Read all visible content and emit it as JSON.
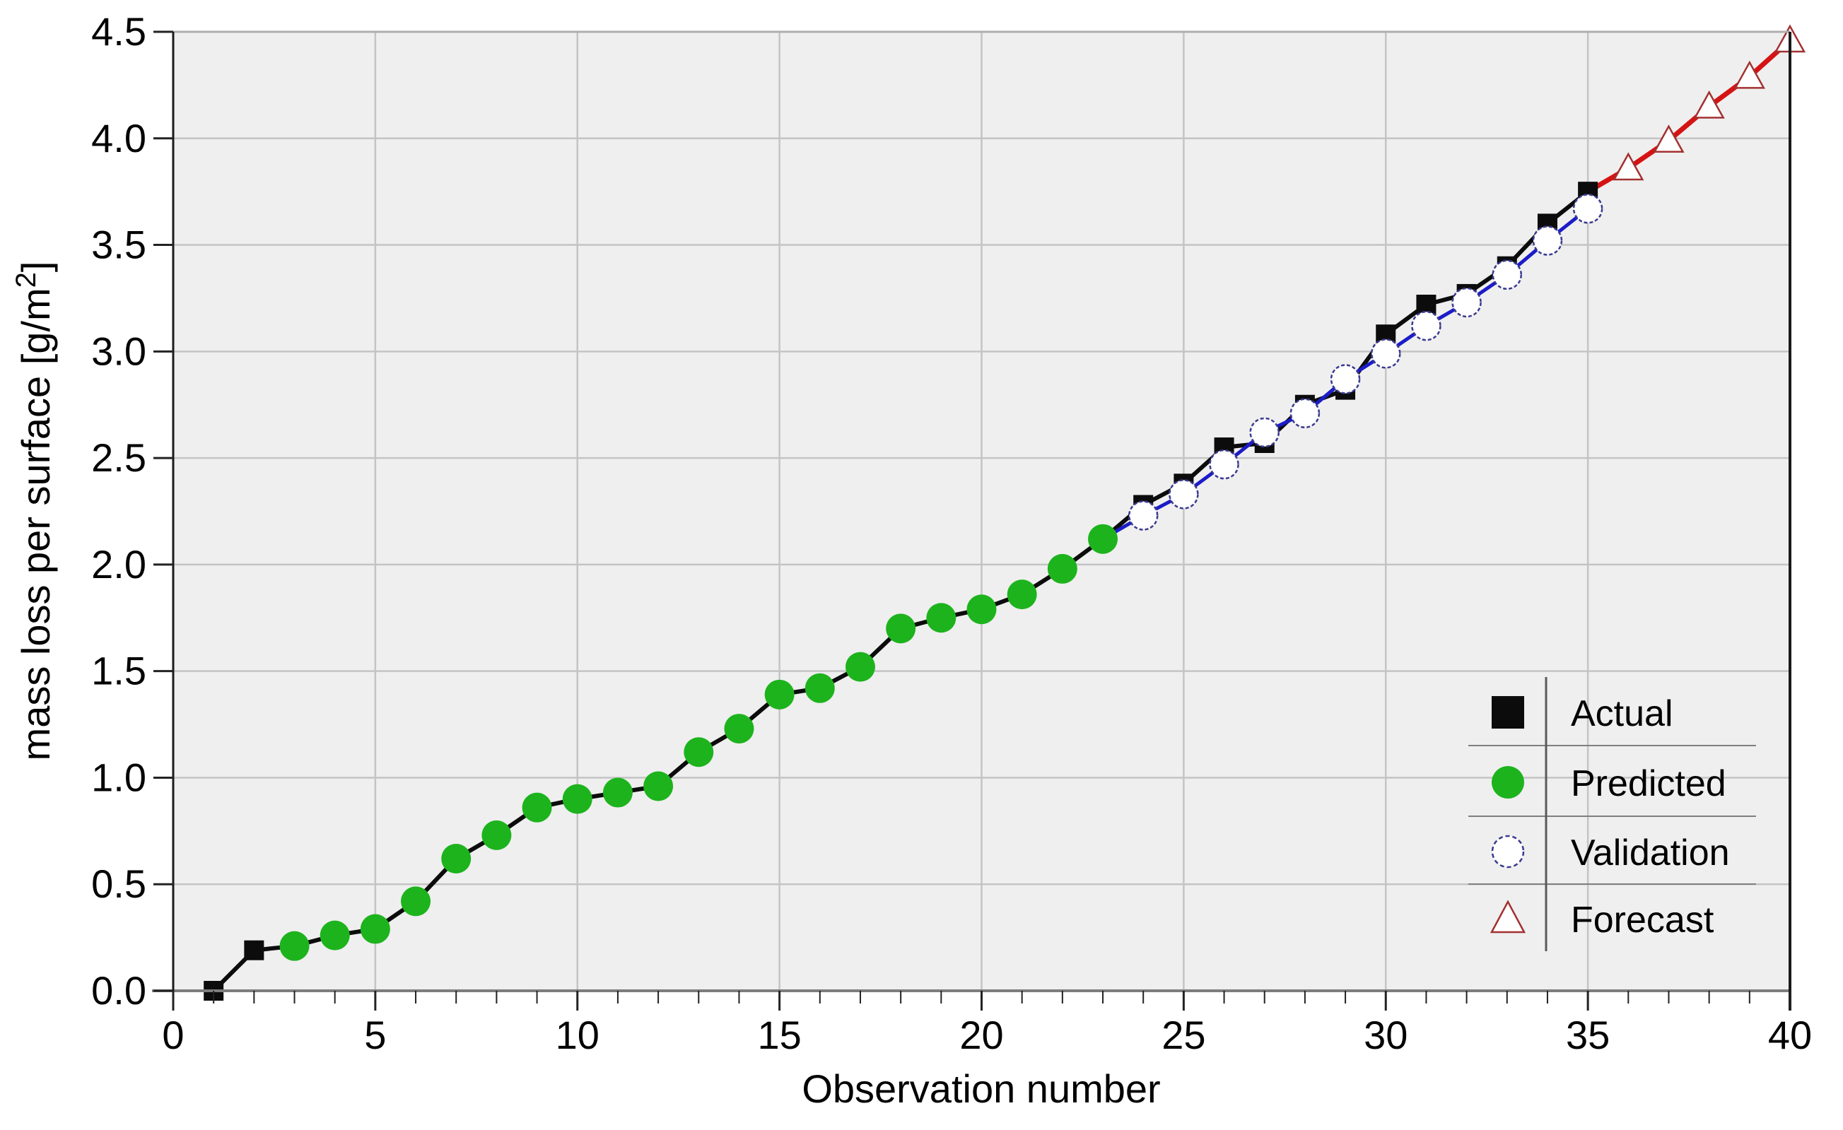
{
  "chart_data": {
    "type": "line",
    "title": "",
    "xlabel": "Observation number",
    "ylabel": "mass loss per surface [g/m²]",
    "ylabel_parts": {
      "prefix": "mass loss per surface [g/m",
      "sup": "2",
      "suffix": "]"
    },
    "xlim": [
      0,
      40
    ],
    "ylim": [
      0,
      4.5
    ],
    "x_ticks": [
      "0",
      "5",
      "10",
      "15",
      "20",
      "25",
      "30",
      "35",
      "40"
    ],
    "y_ticks": [
      "0.0",
      "0.5",
      "1.0",
      "1.5",
      "2.0",
      "2.5",
      "3.0",
      "3.5",
      "4.0",
      "4.5"
    ],
    "grid": true,
    "legend": {
      "position": "lower right",
      "entries": [
        "Actual",
        "Predicted",
        "Validation",
        "Forecast"
      ]
    },
    "series": [
      {
        "name": "Actual",
        "marker": "filled-square",
        "marker_color": "#0c0c0c",
        "line_color": "#0c0c0c",
        "x": [
          1,
          2,
          3,
          4,
          5,
          6,
          7,
          8,
          9,
          10,
          11,
          12,
          13,
          14,
          15,
          16,
          17,
          18,
          19,
          20,
          21,
          22,
          23,
          24,
          25,
          26,
          27,
          28,
          29,
          30,
          31,
          32,
          33,
          34,
          35
        ],
        "y": [
          0.0,
          0.19,
          0.21,
          0.26,
          0.29,
          0.42,
          0.62,
          0.73,
          0.86,
          0.9,
          0.93,
          0.96,
          1.12,
          1.23,
          1.39,
          1.42,
          1.52,
          1.7,
          1.75,
          1.79,
          1.86,
          1.98,
          2.12,
          2.28,
          2.38,
          2.55,
          2.57,
          2.75,
          2.82,
          3.08,
          3.22,
          3.27,
          3.4,
          3.6,
          3.75
        ]
      },
      {
        "name": "Predicted",
        "marker": "filled-circle",
        "marker_color": "#1db31d",
        "line_color": null,
        "x": [
          3,
          4,
          5,
          6,
          7,
          8,
          9,
          10,
          11,
          12,
          13,
          14,
          15,
          16,
          17,
          18,
          19,
          20,
          21,
          22,
          23
        ],
        "y": [
          0.21,
          0.26,
          0.29,
          0.42,
          0.62,
          0.73,
          0.86,
          0.9,
          0.93,
          0.96,
          1.12,
          1.23,
          1.39,
          1.42,
          1.52,
          1.7,
          1.75,
          1.79,
          1.86,
          1.98,
          2.12
        ]
      },
      {
        "name": "Validation",
        "marker": "open-circle",
        "marker_color": "#ffffff",
        "marker_edge": "#3a3a90",
        "line_color": "#1c1cc8",
        "line_start": {
          "x": 23,
          "y": 2.12
        },
        "x": [
          24,
          25,
          26,
          27,
          28,
          29,
          30,
          31,
          32,
          33,
          34,
          35
        ],
        "y": [
          2.23,
          2.33,
          2.47,
          2.62,
          2.71,
          2.87,
          2.99,
          3.12,
          3.23,
          3.36,
          3.52,
          3.67
        ]
      },
      {
        "name": "Forecast",
        "marker": "open-triangle",
        "marker_color": "#ffffff",
        "marker_edge": "#a33030",
        "line_color": "#d41414",
        "line_start": {
          "x": 35,
          "y": 3.75
        },
        "x": [
          36,
          37,
          38,
          39,
          40
        ],
        "y": [
          3.86,
          3.99,
          4.15,
          4.29,
          4.46
        ]
      }
    ],
    "colors": {
      "plot_background": "#efefef",
      "grid": "#c4c4c4",
      "axis_bottom": "#7d7d7d",
      "axis_left": "#1c1c1c",
      "axis_right": "#1a1a1a",
      "axis_top": "#aeaeae",
      "tick": "#222222",
      "legend_separator": "#7f7f7f"
    }
  }
}
